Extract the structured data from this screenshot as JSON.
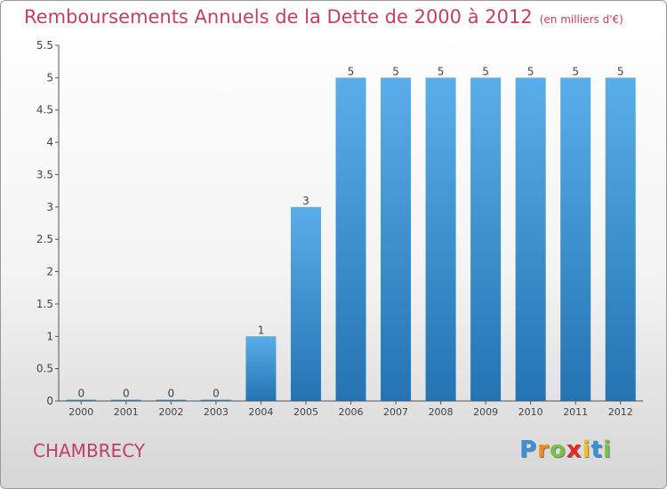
{
  "chart_data": {
    "type": "bar",
    "title": "Remboursements Annuels de la Dette de 2000 à 2012",
    "unit_note": "(en milliers d'€)",
    "categories": [
      "2000",
      "2001",
      "2002",
      "2003",
      "2004",
      "2005",
      "2006",
      "2007",
      "2008",
      "2009",
      "2010",
      "2011",
      "2012"
    ],
    "values": [
      0,
      0,
      0,
      0,
      1,
      3,
      5,
      5,
      5,
      5,
      5,
      5,
      5
    ],
    "data_labels": [
      "0",
      "0",
      "0",
      "0",
      "1",
      "3",
      "5",
      "5",
      "5",
      "5",
      "5",
      "5",
      "5"
    ],
    "ylim": [
      0,
      5.5
    ],
    "yticks": [
      0,
      0.5,
      1,
      1.5,
      2,
      2.5,
      3,
      3.5,
      4,
      4.5,
      5,
      5.5
    ],
    "ytick_labels": [
      "0",
      "0.5",
      "1",
      "1.5",
      "2",
      "2.5",
      "3",
      "3.5",
      "4",
      "4.5",
      "5",
      "5.5"
    ],
    "xlabel": "",
    "ylabel": "",
    "grid": false,
    "legend": "none",
    "bar_color_top": "#5aaee8",
    "bar_color_bottom": "#2473b3",
    "text_color": "#c43f5f"
  },
  "commune": "CHAMBRECY",
  "logo": {
    "letters": [
      "P",
      "r",
      "o",
      "x",
      "i",
      "t",
      "i"
    ],
    "colors": [
      "#3a8fd6",
      "#f08a1c",
      "#7cc242",
      "#e8262a",
      "#f0c419",
      "#3a8fd6",
      "#7cc242"
    ]
  }
}
